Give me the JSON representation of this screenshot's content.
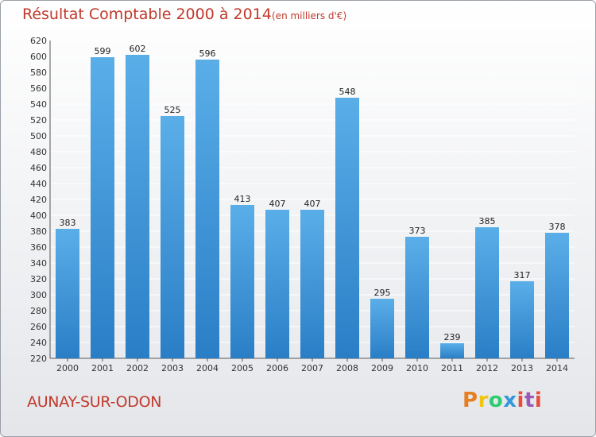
{
  "chart_data": {
    "type": "bar",
    "title": "Résultat Comptable 2000 à 2014",
    "subtitle": "(en milliers d'€)",
    "categories": [
      "2000",
      "2001",
      "2002",
      "2003",
      "2004",
      "2005",
      "2006",
      "2007",
      "2008",
      "2009",
      "2010",
      "2011",
      "2012",
      "2013",
      "2014"
    ],
    "values": [
      383,
      599,
      602,
      525,
      596,
      413,
      407,
      407,
      548,
      295,
      373,
      239,
      385,
      317,
      378
    ],
    "ylim": [
      220,
      620
    ],
    "ystep": 20,
    "xlabel": "",
    "ylabel": "",
    "grid": true,
    "bar_color_top": "#5aaee8",
    "bar_color_bottom": "#2a7ec6"
  },
  "footer": {
    "commune": "AUNAY-SUR-ODON",
    "logo": {
      "p": "P",
      "r": "r",
      "o": "o",
      "x": "x",
      "i": "i",
      "t": "t",
      "i2": "i"
    }
  }
}
